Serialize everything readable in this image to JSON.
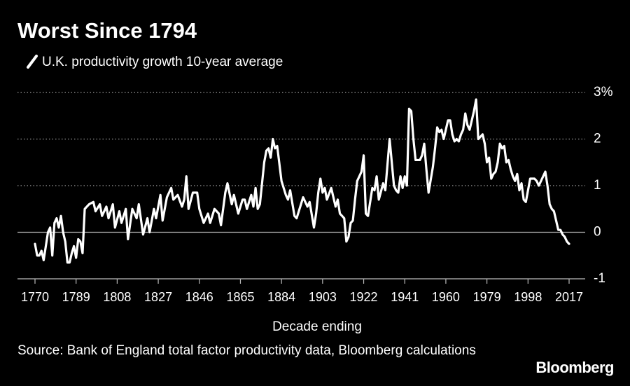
{
  "chart_data": {
    "type": "line",
    "title": "Worst Since 1794",
    "x_label": "Decade ending",
    "source": "Source: Bank of England total factor productivity data, Bloomberg calculations",
    "brand": "Bloomberg",
    "legend": "top-left",
    "grid": true,
    "xlim": [
      1765,
      2022
    ],
    "xticks": [
      1770,
      1789,
      1808,
      1827,
      1846,
      1865,
      1884,
      1903,
      1922,
      1941,
      1960,
      1979,
      1998,
      2017
    ],
    "ylim": [
      -1,
      3
    ],
    "yticks": [
      {
        "value": 3,
        "label": "3%"
      },
      2,
      1,
      0,
      -1
    ],
    "x": [
      1770,
      1771,
      1772,
      1773,
      1774,
      1775,
      1776,
      1777,
      1778,
      1779,
      1780,
      1781,
      1782,
      1783,
      1784,
      1785,
      1786,
      1787,
      1788,
      1789,
      1790,
      1791,
      1792,
      1793,
      1795,
      1797,
      1798,
      1800,
      1801,
      1803,
      1804,
      1806,
      1807,
      1809,
      1810,
      1812,
      1813,
      1815,
      1817,
      1818,
      1820,
      1822,
      1823,
      1825,
      1826,
      1828,
      1829,
      1831,
      1833,
      1834,
      1836,
      1838,
      1839,
      1840,
      1841,
      1843,
      1845,
      1846,
      1848,
      1850,
      1851,
      1853,
      1855,
      1856,
      1858,
      1859,
      1861,
      1862,
      1864,
      1866,
      1867,
      1868,
      1870,
      1871,
      1872,
      1873,
      1874,
      1876,
      1877,
      1878,
      1879,
      1880,
      1881,
      1882,
      1884,
      1886,
      1887,
      1888,
      1890,
      1891,
      1893,
      1894,
      1896,
      1897,
      1899,
      1900,
      1901,
      1902,
      1903,
      1904,
      1905,
      1907,
      1909,
      1910,
      1911,
      1913,
      1914,
      1915,
      1916,
      1917,
      1918,
      1919,
      1921,
      1922,
      1923,
      1924,
      1926,
      1927,
      1928,
      1929,
      1931,
      1932,
      1934,
      1935,
      1936,
      1937,
      1938,
      1939,
      1940,
      1941,
      1942,
      1943,
      1944,
      1945,
      1946,
      1948,
      1949,
      1950,
      1951,
      1952,
      1954,
      1955,
      1956,
      1957,
      1958,
      1959,
      1961,
      1962,
      1963,
      1964,
      1965,
      1966,
      1967,
      1968,
      1969,
      1970,
      1971,
      1972,
      1973,
      1974,
      1975,
      1976,
      1977,
      1978,
      1979,
      1980,
      1981,
      1982,
      1983,
      1984,
      1985,
      1986,
      1987,
      1988,
      1989,
      1990,
      1991,
      1992,
      1993,
      1994,
      1995,
      1996,
      1997,
      1998,
      1999,
      2001,
      2002,
      2003,
      2005,
      2006,
      2007,
      2008,
      2009,
      2010,
      2011,
      2012,
      2013,
      2014,
      2015,
      2016,
      2017
    ],
    "series": [
      {
        "name": "U.K. productivity growth 10-year average",
        "color": "#ffffff",
        "values": [
          -0.25,
          -0.5,
          -0.5,
          -0.4,
          -0.6,
          -0.3,
          0.0,
          0.1,
          -0.5,
          0.2,
          0.3,
          0.1,
          0.35,
          0.0,
          -0.2,
          -0.65,
          -0.65,
          -0.45,
          -0.3,
          -0.55,
          -0.15,
          -0.2,
          -0.45,
          0.5,
          0.6,
          0.65,
          0.45,
          0.6,
          0.35,
          0.55,
          0.3,
          0.6,
          0.1,
          0.45,
          0.2,
          0.5,
          -0.15,
          0.5,
          0.3,
          0.6,
          -0.05,
          0.3,
          0.0,
          0.5,
          0.3,
          0.8,
          0.25,
          0.75,
          0.95,
          0.7,
          0.8,
          0.55,
          0.7,
          1.2,
          0.5,
          0.85,
          0.85,
          0.5,
          0.2,
          0.4,
          0.2,
          0.5,
          0.4,
          0.15,
          0.85,
          1.05,
          0.6,
          0.8,
          0.4,
          0.7,
          0.7,
          0.5,
          0.8,
          0.55,
          0.95,
          0.5,
          0.6,
          1.5,
          1.75,
          1.8,
          1.6,
          2.0,
          1.8,
          1.85,
          1.1,
          0.8,
          0.7,
          0.9,
          0.35,
          0.3,
          0.6,
          0.75,
          0.55,
          0.65,
          0.1,
          0.4,
          0.85,
          1.15,
          0.85,
          0.95,
          0.7,
          0.95,
          0.55,
          0.7,
          0.4,
          0.3,
          -0.2,
          -0.1,
          0.2,
          0.25,
          0.7,
          1.1,
          1.3,
          1.65,
          0.4,
          0.35,
          0.95,
          0.9,
          1.2,
          0.7,
          1.05,
          0.9,
          2.0,
          1.5,
          1.0,
          0.9,
          0.85,
          1.2,
          0.95,
          1.2,
          1.0,
          2.65,
          2.6,
          2.0,
          1.55,
          1.55,
          1.65,
          1.9,
          1.35,
          0.85,
          1.4,
          1.8,
          2.25,
          2.15,
          2.2,
          2.0,
          2.4,
          2.4,
          2.1,
          1.95,
          2.0,
          1.95,
          2.1,
          2.2,
          2.55,
          2.3,
          2.2,
          2.4,
          2.6,
          2.85,
          2.0,
          2.05,
          2.1,
          1.9,
          1.5,
          1.6,
          1.15,
          1.25,
          1.3,
          1.5,
          1.9,
          1.8,
          1.85,
          1.5,
          1.55,
          1.35,
          1.2,
          1.1,
          1.25,
          0.9,
          1.05,
          0.7,
          0.65,
          0.9,
          1.15,
          1.15,
          1.1,
          1.0,
          1.2,
          1.3,
          1.0,
          0.6,
          0.5,
          0.45,
          0.25,
          0.05,
          0.05,
          -0.05,
          -0.1,
          -0.2,
          -0.25
        ]
      }
    ]
  }
}
